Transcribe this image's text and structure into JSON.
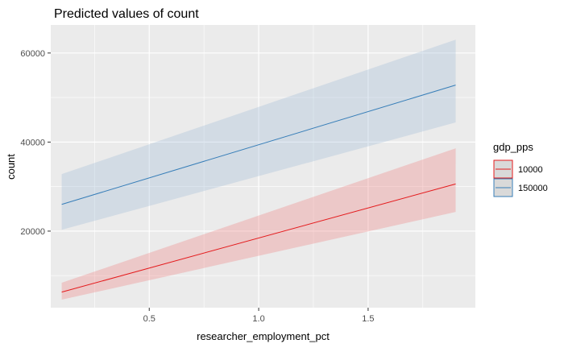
{
  "chart_data": {
    "type": "area",
    "title": "Predicted values of count",
    "xlabel": "researcher_employment_pct",
    "ylabel": "count",
    "xlim": [
      0.05,
      1.99
    ],
    "ylim": [
      2800,
      66300
    ],
    "x_ticks": [
      0.5,
      1.0,
      1.5
    ],
    "x_tick_labels": [
      "0.5",
      "1.0",
      "1.5"
    ],
    "x_minor_ticks": [
      0.25,
      0.75,
      1.25,
      1.75
    ],
    "y_ticks": [
      20000,
      40000,
      60000
    ],
    "y_tick_labels": [
      "20000",
      "40000",
      "60000"
    ],
    "y_minor_ticks": [
      10000,
      30000,
      50000
    ],
    "grid": true,
    "panel_background": "#ebebeb",
    "legend": {
      "title": "gdp_pps",
      "position": "right",
      "entries": [
        "10000",
        "150000"
      ]
    },
    "series": [
      {
        "name": "10000",
        "color": "#e41a1c",
        "band_color": "#f08080",
        "x": [
          0.1,
          1.9
        ],
        "y": [
          6300,
          30600
        ],
        "lower": [
          4600,
          24300
        ],
        "upper": [
          8400,
          38600
        ]
      },
      {
        "name": "150000",
        "color": "#377eb8",
        "band_color": "#9fbbd6",
        "x": [
          0.1,
          1.9
        ],
        "y": [
          26000,
          52800
        ],
        "lower": [
          20300,
          44400
        ],
        "upper": [
          32800,
          63000
        ]
      }
    ]
  }
}
